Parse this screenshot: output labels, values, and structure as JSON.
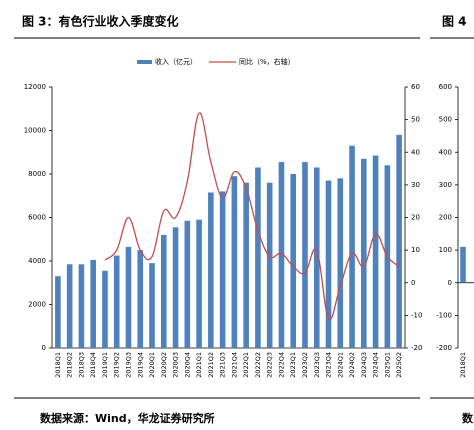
{
  "chart_data": [
    {
      "type": "combo",
      "title": "图 3：有色行业收入季度变化",
      "source": "数据来源：Wind，华龙证券研究所",
      "categories": [
        "2018Q1",
        "2018Q2",
        "2018Q3",
        "2018Q4",
        "2019Q1",
        "2019Q2",
        "2019Q3",
        "2019Q4",
        "2020Q1",
        "2020Q2",
        "2020Q3",
        "2020Q4",
        "2021Q1",
        "2021Q2",
        "2021Q3",
        "2021Q4",
        "2022Q1",
        "2022Q2",
        "2022Q3",
        "2022Q4",
        "2023Q1",
        "2023Q2",
        "2023Q3",
        "2023Q4",
        "2024Q1",
        "2024Q2",
        "2024Q3",
        "2024Q4",
        "2025Q1",
        "2025Q2"
      ],
      "series": [
        {
          "name": "收入（亿元）",
          "type": "bar",
          "color": "#4f81bd",
          "values": [
            3300,
            3850,
            3850,
            4050,
            3550,
            4250,
            4650,
            4500,
            3900,
            5200,
            5550,
            5850,
            5900,
            7150,
            7200,
            7900,
            7600,
            8300,
            7600,
            8550,
            8000,
            8550,
            8300,
            7700,
            7800,
            9300,
            8700,
            8850,
            8400,
            9800
          ]
        },
        {
          "name": "同比（%，右轴）",
          "type": "line",
          "axis": "y2",
          "color": "#c0504d",
          "values": [
            null,
            null,
            null,
            null,
            7,
            10,
            20,
            10,
            8,
            22,
            20,
            31,
            52,
            37,
            26,
            34,
            29,
            16,
            8,
            9,
            5,
            3,
            10,
            -11,
            -1,
            9,
            5,
            15,
            8,
            5
          ]
        }
      ],
      "ylim": [
        0,
        12000
      ],
      "yticks": [
        0,
        2000,
        4000,
        6000,
        8000,
        10000,
        12000
      ],
      "y2lim": [
        -20,
        60
      ],
      "y2ticks": [
        -20,
        -10,
        0,
        10,
        20,
        30,
        40,
        50,
        60
      ]
    },
    {
      "type": "bar",
      "title": "图 4",
      "source": "数",
      "categories": [
        "2018Q1"
      ],
      "values": [
        110
      ],
      "color": "#4f81bd",
      "ylim": [
        -200,
        600
      ],
      "yticks": [
        -200,
        -100,
        0,
        100,
        200,
        300,
        400,
        500,
        600
      ]
    }
  ]
}
